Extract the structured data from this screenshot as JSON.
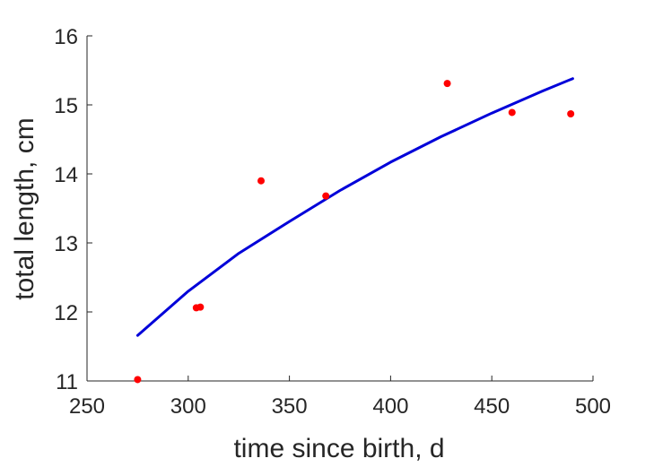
{
  "chart_data": {
    "type": "scatter",
    "title": "",
    "xlabel": "time since birth, d",
    "ylabel": "total length, cm",
    "xlim": [
      250,
      500
    ],
    "ylim": [
      11,
      16
    ],
    "xticks": [
      250,
      300,
      350,
      400,
      450,
      500
    ],
    "yticks": [
      11,
      12,
      13,
      14,
      15,
      16
    ],
    "grid": false,
    "legend": "none",
    "series": [
      {
        "kind": "points",
        "color": "#ff0000",
        "x": [
          275,
          304,
          306,
          336,
          368,
          428,
          460,
          489
        ],
        "y": [
          11.02,
          12.06,
          12.07,
          13.9,
          13.68,
          15.31,
          14.89,
          14.87
        ]
      },
      {
        "kind": "line",
        "color": "#0000d9",
        "x": [
          275,
          300,
          325,
          350,
          375,
          400,
          425,
          450,
          475,
          490
        ],
        "y": [
          11.66,
          12.3,
          12.85,
          13.31,
          13.76,
          14.17,
          14.54,
          14.88,
          15.2,
          15.38
        ]
      }
    ]
  }
}
